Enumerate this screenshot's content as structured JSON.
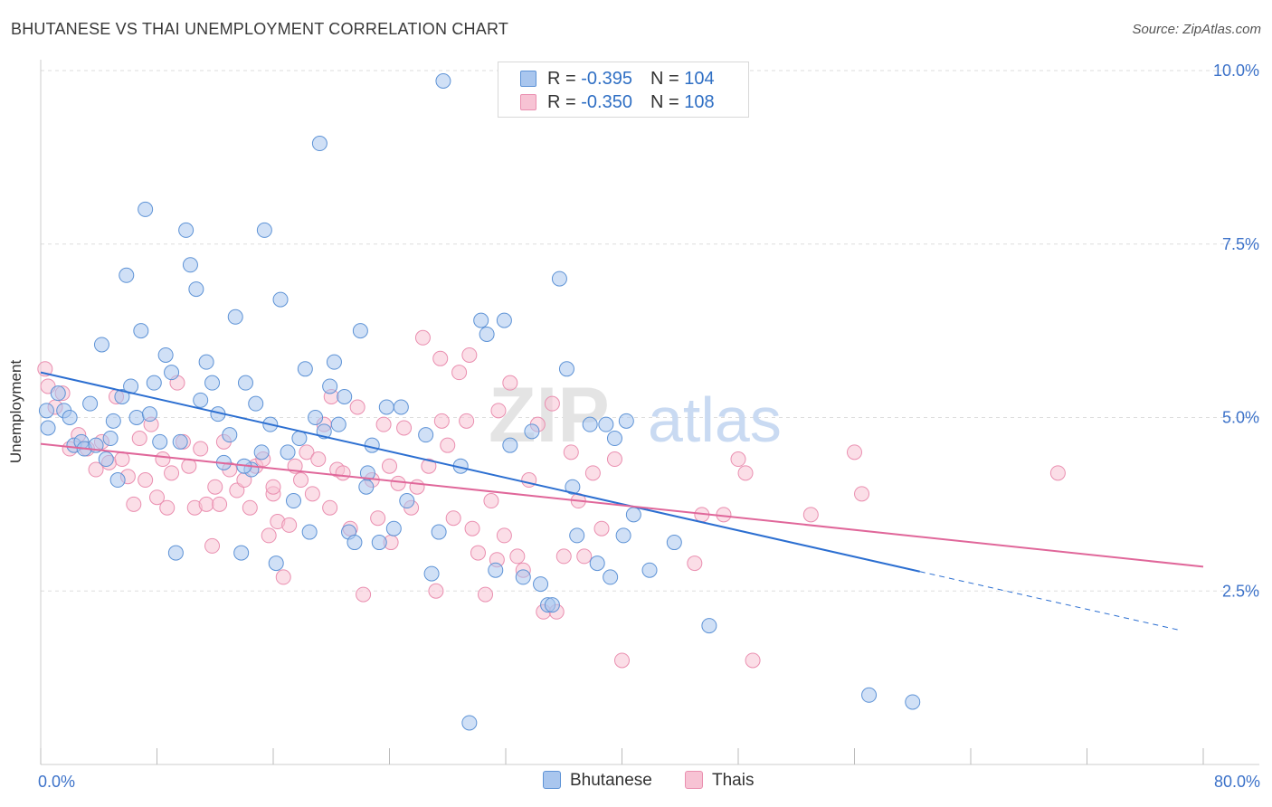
{
  "header": {
    "title": "BHUTANESE VS THAI UNEMPLOYMENT CORRELATION CHART",
    "source": "Source: ZipAtlas.com"
  },
  "watermark": {
    "zip": "ZIP",
    "atlas": "atlas"
  },
  "legend_top": {
    "rows": [
      {
        "r_label": "R = ",
        "r_value": "-0.395",
        "n_label": "N = ",
        "n_value": "104",
        "color": "#7aa8e0"
      },
      {
        "r_label": "R = ",
        "r_value": "-0.350",
        "n_label": "N = ",
        "n_value": "108",
        "color": "#f2a2bf"
      }
    ]
  },
  "legend_bottom": {
    "items": [
      {
        "label": "Bhutanese",
        "color": "#7aa8e0"
      },
      {
        "label": "Thais",
        "color": "#f2a2bf"
      }
    ]
  },
  "colors": {
    "blue_fill": "#a9c6ee",
    "blue_stroke": "#5e93d6",
    "blue_line": "#2c6fd1",
    "pink_fill": "#f7c3d4",
    "pink_stroke": "#ea8fb0",
    "pink_line": "#e0679a",
    "tick_label": "#3c72c9",
    "grid": "#dddddd"
  },
  "chart_data": {
    "type": "scatter",
    "title": "BHUTANESE VS THAI UNEMPLOYMENT CORRELATION CHART",
    "xlabel": "",
    "ylabel": "Unemployment",
    "xlim": [
      0,
      80
    ],
    "ylim": [
      0,
      10
    ],
    "x_tick_labels": [
      "0.0%",
      "80.0%"
    ],
    "y_ticks": [
      2.5,
      5.0,
      7.5,
      10.0
    ],
    "y_tick_labels": [
      "2.5%",
      "5.0%",
      "7.5%",
      "10.0%"
    ],
    "grid": true,
    "legend_placement": "top-center",
    "series": [
      {
        "name": "Bhutanese",
        "r": -0.395,
        "n": 104,
        "trend": {
          "x0": 0,
          "y0": 5.65,
          "x1": 60.5,
          "y1": 2.78,
          "dash_x1": 78.5,
          "dash_y1": 1.93
        },
        "points": [
          [
            0.4,
            5.1
          ],
          [
            0.5,
            4.85
          ],
          [
            1.2,
            5.35
          ],
          [
            1.6,
            5.1
          ],
          [
            2.0,
            5.0
          ],
          [
            2.3,
            4.6
          ],
          [
            2.8,
            4.65
          ],
          [
            3.0,
            4.55
          ],
          [
            3.4,
            5.2
          ],
          [
            3.8,
            4.6
          ],
          [
            4.2,
            6.05
          ],
          [
            4.5,
            4.4
          ],
          [
            4.8,
            4.7
          ],
          [
            5.0,
            4.95
          ],
          [
            5.3,
            4.1
          ],
          [
            5.6,
            5.3
          ],
          [
            5.9,
            7.05
          ],
          [
            6.2,
            5.45
          ],
          [
            6.6,
            5.0
          ],
          [
            6.9,
            6.25
          ],
          [
            7.2,
            8.0
          ],
          [
            7.5,
            5.05
          ],
          [
            7.8,
            5.5
          ],
          [
            8.2,
            4.65
          ],
          [
            8.6,
            5.9
          ],
          [
            9.0,
            5.65
          ],
          [
            9.3,
            3.05
          ],
          [
            9.6,
            4.65
          ],
          [
            10.0,
            7.7
          ],
          [
            10.3,
            7.2
          ],
          [
            10.7,
            6.85
          ],
          [
            11.0,
            5.25
          ],
          [
            11.4,
            5.8
          ],
          [
            11.8,
            5.5
          ],
          [
            12.2,
            5.05
          ],
          [
            12.6,
            4.35
          ],
          [
            13.0,
            4.75
          ],
          [
            13.4,
            6.45
          ],
          [
            13.8,
            3.05
          ],
          [
            14.1,
            5.5
          ],
          [
            14.5,
            4.25
          ],
          [
            14.8,
            5.2
          ],
          [
            15.2,
            4.5
          ],
          [
            15.4,
            7.7
          ],
          [
            15.8,
            4.9
          ],
          [
            16.2,
            2.9
          ],
          [
            16.5,
            6.7
          ],
          [
            17.0,
            4.5
          ],
          [
            17.4,
            3.8
          ],
          [
            17.8,
            4.7
          ],
          [
            18.2,
            5.7
          ],
          [
            18.5,
            3.35
          ],
          [
            18.9,
            5.0
          ],
          [
            19.2,
            8.95
          ],
          [
            19.5,
            4.8
          ],
          [
            19.9,
            5.45
          ],
          [
            20.2,
            5.8
          ],
          [
            20.5,
            4.9
          ],
          [
            20.9,
            5.3
          ],
          [
            21.2,
            3.35
          ],
          [
            21.6,
            3.2
          ],
          [
            22.0,
            6.25
          ],
          [
            22.4,
            4.0
          ],
          [
            22.8,
            4.6
          ],
          [
            23.3,
            3.2
          ],
          [
            23.8,
            5.15
          ],
          [
            24.3,
            3.4
          ],
          [
            24.8,
            5.15
          ],
          [
            25.2,
            3.8
          ],
          [
            26.5,
            4.75
          ],
          [
            26.9,
            2.75
          ],
          [
            27.4,
            3.35
          ],
          [
            27.7,
            9.85
          ],
          [
            28.9,
            4.3
          ],
          [
            29.5,
            0.6
          ],
          [
            30.3,
            6.4
          ],
          [
            30.7,
            6.2
          ],
          [
            31.3,
            2.8
          ],
          [
            31.9,
            6.4
          ],
          [
            32.3,
            4.6
          ],
          [
            33.2,
            2.7
          ],
          [
            33.8,
            4.8
          ],
          [
            34.4,
            2.6
          ],
          [
            34.9,
            2.3
          ],
          [
            35.2,
            2.3
          ],
          [
            35.7,
            7.0
          ],
          [
            36.2,
            5.7
          ],
          [
            36.6,
            4.0
          ],
          [
            36.9,
            3.3
          ],
          [
            37.8,
            4.9
          ],
          [
            38.3,
            2.9
          ],
          [
            38.9,
            4.9
          ],
          [
            39.2,
            2.7
          ],
          [
            39.5,
            4.7
          ],
          [
            40.1,
            3.3
          ],
          [
            40.3,
            4.95
          ],
          [
            40.8,
            3.6
          ],
          [
            41.9,
            2.8
          ],
          [
            43.6,
            3.2
          ],
          [
            46.0,
            2.0
          ],
          [
            57.0,
            1.0
          ],
          [
            60.0,
            0.9
          ],
          [
            22.5,
            4.2
          ],
          [
            14.0,
            4.3
          ]
        ]
      },
      {
        "name": "Thais",
        "r": -0.35,
        "n": 108,
        "trend": {
          "x0": 0,
          "y0": 4.62,
          "x1": 80,
          "y1": 2.85
        },
        "points": [
          [
            0.3,
            5.7
          ],
          [
            0.5,
            5.45
          ],
          [
            1.0,
            5.15
          ],
          [
            1.5,
            5.35
          ],
          [
            2.0,
            4.55
          ],
          [
            2.6,
            4.75
          ],
          [
            3.2,
            4.55
          ],
          [
            3.8,
            4.25
          ],
          [
            4.2,
            4.65
          ],
          [
            4.7,
            4.35
          ],
          [
            5.2,
            5.3
          ],
          [
            5.6,
            4.4
          ],
          [
            6.0,
            4.15
          ],
          [
            6.4,
            3.75
          ],
          [
            6.8,
            4.7
          ],
          [
            7.2,
            4.1
          ],
          [
            7.6,
            4.9
          ],
          [
            8.0,
            3.85
          ],
          [
            8.4,
            4.4
          ],
          [
            8.7,
            3.7
          ],
          [
            9.0,
            4.2
          ],
          [
            9.4,
            5.5
          ],
          [
            9.8,
            4.65
          ],
          [
            10.2,
            4.3
          ],
          [
            10.6,
            3.7
          ],
          [
            11.0,
            4.55
          ],
          [
            11.4,
            3.75
          ],
          [
            11.8,
            3.15
          ],
          [
            12.3,
            3.75
          ],
          [
            12.6,
            4.65
          ],
          [
            13.0,
            4.25
          ],
          [
            13.5,
            3.95
          ],
          [
            14.0,
            4.1
          ],
          [
            14.4,
            3.7
          ],
          [
            14.8,
            4.3
          ],
          [
            15.3,
            4.4
          ],
          [
            15.7,
            3.3
          ],
          [
            16.0,
            3.9
          ],
          [
            16.3,
            3.5
          ],
          [
            16.7,
            2.7
          ],
          [
            17.1,
            3.45
          ],
          [
            17.5,
            4.3
          ],
          [
            17.9,
            4.1
          ],
          [
            18.3,
            4.5
          ],
          [
            18.7,
            3.9
          ],
          [
            19.1,
            4.4
          ],
          [
            19.5,
            4.9
          ],
          [
            19.9,
            3.7
          ],
          [
            20.4,
            4.25
          ],
          [
            20.8,
            4.2
          ],
          [
            21.3,
            3.4
          ],
          [
            21.8,
            5.15
          ],
          [
            22.2,
            2.45
          ],
          [
            22.8,
            4.1
          ],
          [
            23.2,
            3.55
          ],
          [
            23.6,
            4.9
          ],
          [
            24.1,
            3.2
          ],
          [
            24.6,
            4.05
          ],
          [
            25.0,
            4.85
          ],
          [
            25.5,
            3.7
          ],
          [
            25.9,
            4.0
          ],
          [
            26.3,
            6.15
          ],
          [
            26.7,
            4.3
          ],
          [
            27.2,
            2.5
          ],
          [
            27.6,
            4.95
          ],
          [
            28.0,
            4.6
          ],
          [
            28.4,
            3.55
          ],
          [
            28.8,
            5.65
          ],
          [
            29.3,
            4.95
          ],
          [
            29.7,
            3.4
          ],
          [
            30.1,
            3.05
          ],
          [
            30.6,
            2.45
          ],
          [
            31.0,
            3.8
          ],
          [
            31.4,
            2.95
          ],
          [
            31.9,
            3.3
          ],
          [
            32.3,
            5.5
          ],
          [
            32.8,
            3.0
          ],
          [
            33.2,
            2.8
          ],
          [
            33.6,
            4.1
          ],
          [
            34.2,
            4.9
          ],
          [
            34.6,
            2.2
          ],
          [
            35.2,
            5.2
          ],
          [
            35.5,
            2.2
          ],
          [
            36.0,
            3.0
          ],
          [
            36.5,
            4.5
          ],
          [
            37.0,
            3.8
          ],
          [
            37.4,
            3.0
          ],
          [
            38.0,
            4.2
          ],
          [
            38.6,
            3.4
          ],
          [
            39.5,
            4.4
          ],
          [
            40.0,
            1.5
          ],
          [
            45.0,
            2.9
          ],
          [
            47.0,
            3.6
          ],
          [
            48.0,
            4.4
          ],
          [
            49.0,
            1.5
          ],
          [
            48.5,
            4.2
          ],
          [
            45.5,
            3.6
          ],
          [
            53.0,
            3.6
          ],
          [
            56.0,
            4.5
          ],
          [
            56.5,
            3.9
          ],
          [
            70.0,
            4.2
          ],
          [
            27.5,
            5.85
          ],
          [
            29.5,
            5.9
          ],
          [
            31.5,
            5.1
          ],
          [
            16.0,
            4.0
          ],
          [
            24.0,
            4.3
          ],
          [
            12.0,
            4.0
          ],
          [
            20.0,
            5.3
          ]
        ]
      }
    ]
  }
}
